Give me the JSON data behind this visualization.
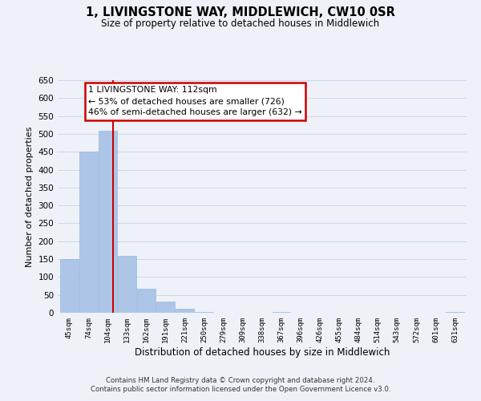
{
  "title": "1, LIVINGSTONE WAY, MIDDLEWICH, CW10 0SR",
  "subtitle": "Size of property relative to detached houses in Middlewich",
  "xlabel": "Distribution of detached houses by size in Middlewich",
  "ylabel": "Number of detached properties",
  "bin_labels": [
    "45sqm",
    "74sqm",
    "104sqm",
    "133sqm",
    "162sqm",
    "191sqm",
    "221sqm",
    "250sqm",
    "279sqm",
    "309sqm",
    "338sqm",
    "367sqm",
    "396sqm",
    "426sqm",
    "455sqm",
    "484sqm",
    "514sqm",
    "543sqm",
    "572sqm",
    "601sqm",
    "631sqm"
  ],
  "bar_heights": [
    150,
    450,
    508,
    160,
    67,
    32,
    12,
    3,
    0,
    0,
    0,
    3,
    0,
    0,
    0,
    0,
    0,
    0,
    0,
    0,
    3
  ],
  "bar_color": "#adc6e8",
  "bar_edge_color": "#9ab8dc",
  "grid_color": "#c8d8ec",
  "bg_color": "#eef2f8",
  "red_line_x": 2.27,
  "annotation_title": "1 LIVINGSTONE WAY: 112sqm",
  "annotation_line1": "← 53% of detached houses are smaller (726)",
  "annotation_line2": "46% of semi-detached houses are larger (632) →",
  "annotation_box_facecolor": "#ffffff",
  "annotation_box_edgecolor": "#cc0000",
  "ylim": [
    0,
    650
  ],
  "yticks": [
    0,
    50,
    100,
    150,
    200,
    250,
    300,
    350,
    400,
    450,
    500,
    550,
    600,
    650
  ],
  "footer1": "Contains HM Land Registry data © Crown copyright and database right 2024.",
  "footer2": "Contains public sector information licensed under the Open Government Licence v3.0."
}
